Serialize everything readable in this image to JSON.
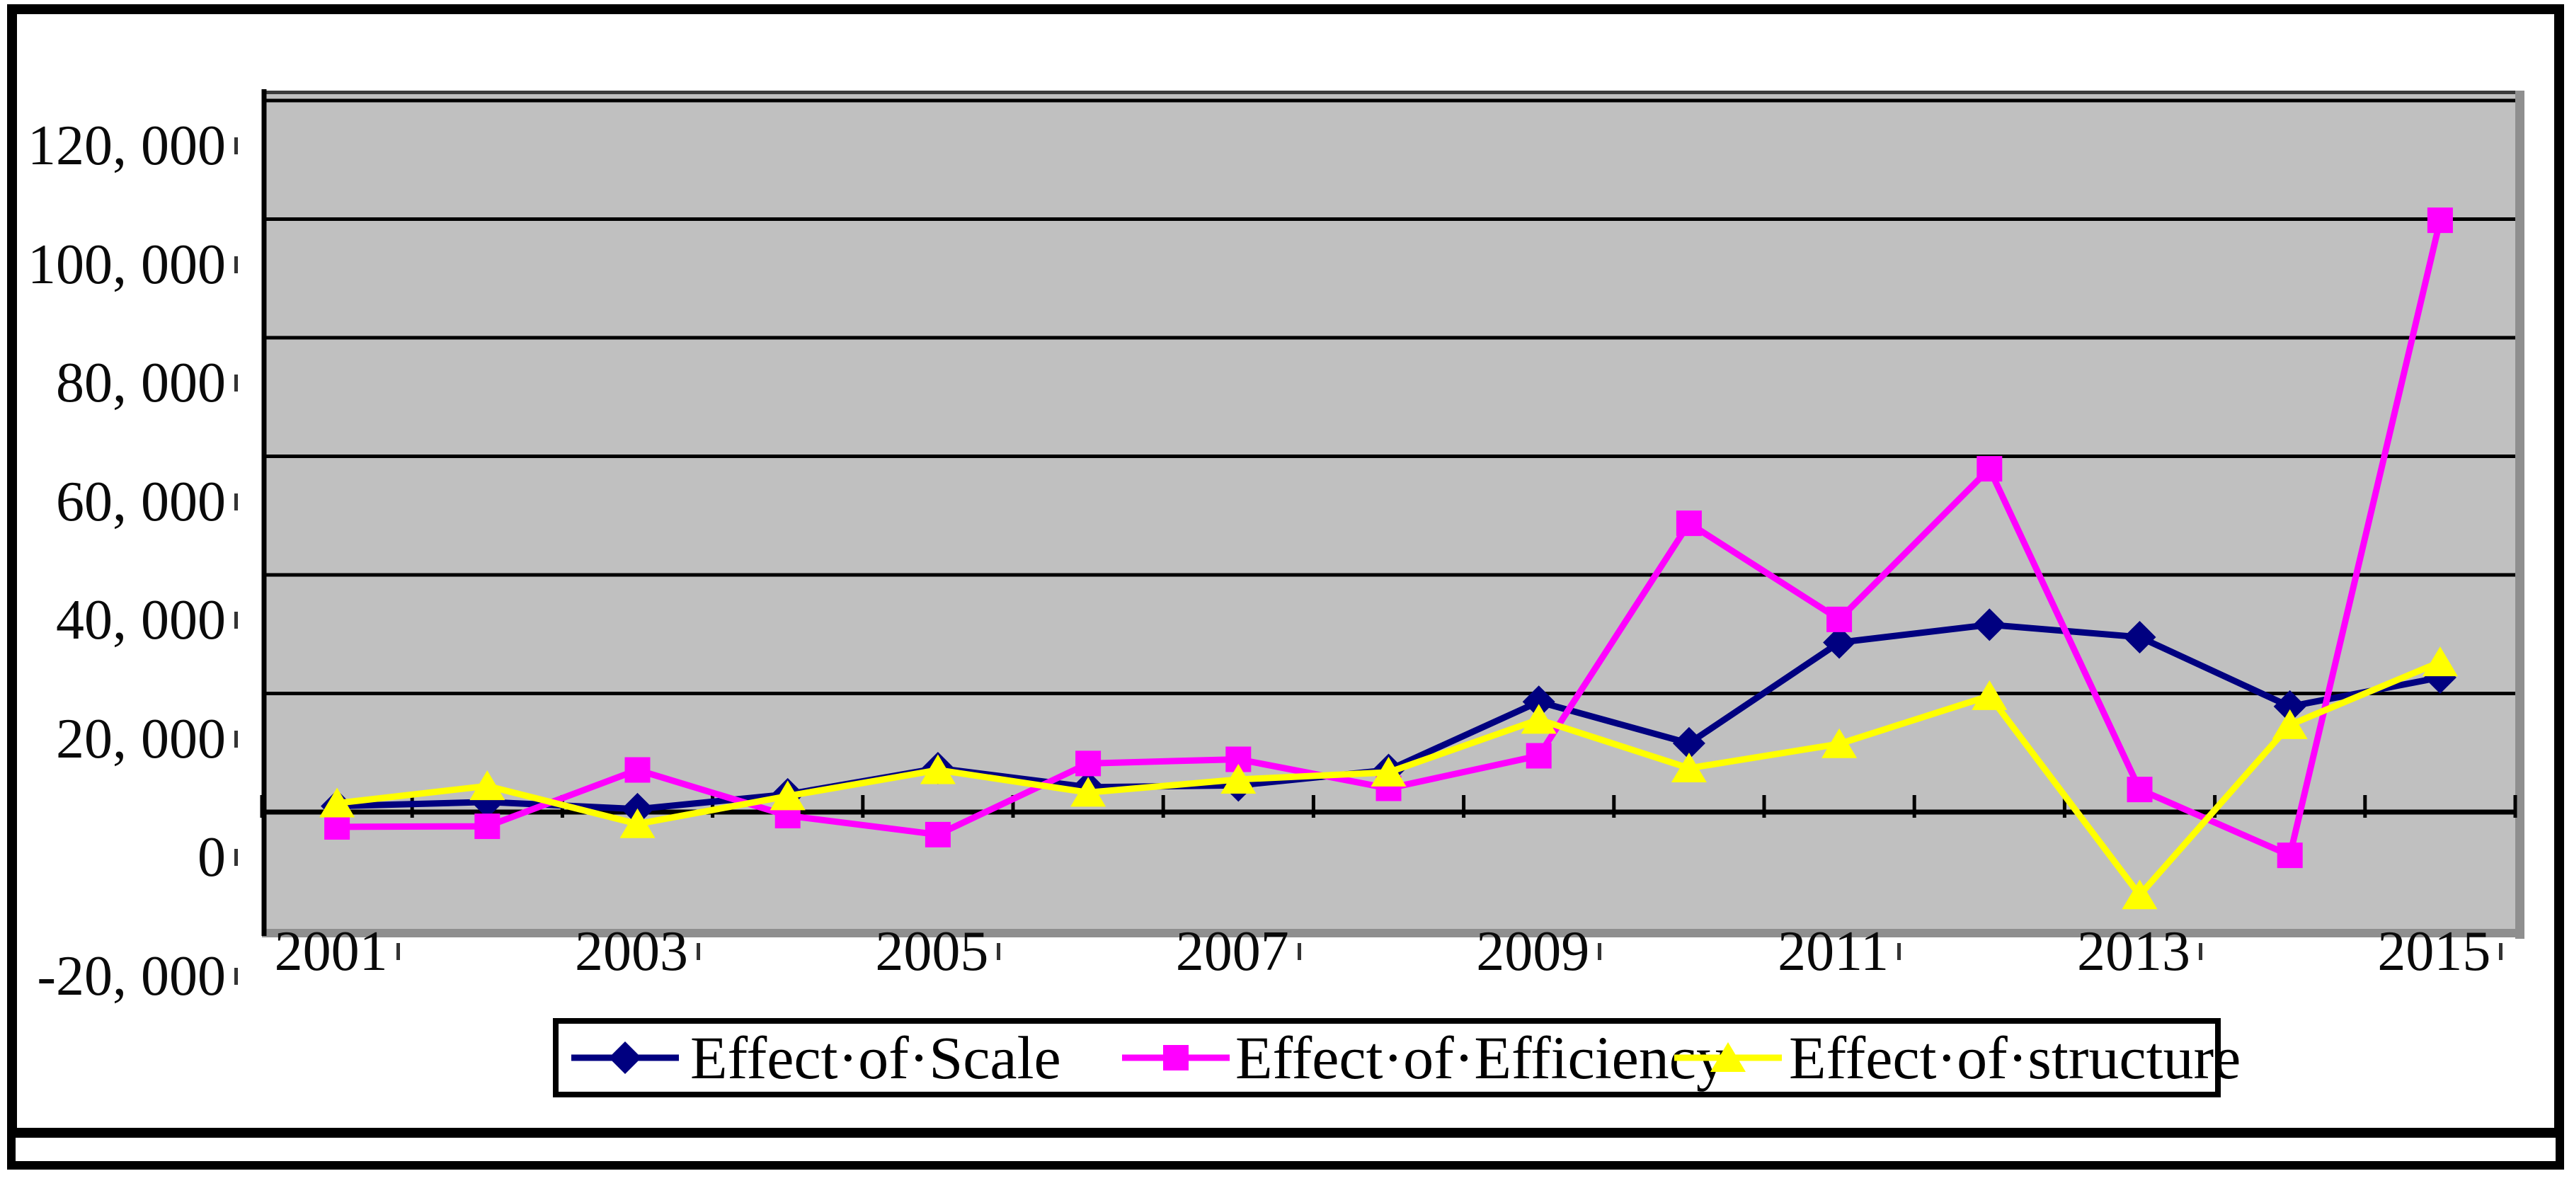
{
  "chart_data": {
    "type": "line",
    "title": "",
    "categories": [
      2001,
      2002,
      2003,
      2004,
      2005,
      2006,
      2007,
      2008,
      2009,
      2010,
      2011,
      2012,
      2013,
      2014,
      2015
    ],
    "x_tick_labels": [
      "2001",
      "2003",
      "2005",
      "2007",
      "2009",
      "2011",
      "2013",
      "2015"
    ],
    "y_tick_labels": [
      "120, 000",
      "100, 000",
      "80, 000",
      "60, 000",
      "40, 000",
      "20, 000",
      "0",
      "-20, 000"
    ],
    "y_tick_values": [
      120000,
      100000,
      80000,
      60000,
      40000,
      20000,
      0,
      -20000
    ],
    "ylim": [
      -20000,
      122000
    ],
    "xlabel": "",
    "ylabel": "",
    "grid": "horizontal-major",
    "legend_position": "bottom",
    "plot_background": "#c0c0c0",
    "gridline_color": "#000000",
    "axis_color": "#000000",
    "series": [
      {
        "name": "Effect·of·Scale",
        "color": "#000080",
        "marker": "diamond",
        "values": [
          1000,
          1700,
          500,
          3000,
          7400,
          4200,
          4500,
          7100,
          18600,
          11600,
          28600,
          31600,
          29500,
          17800,
          22700
        ]
      },
      {
        "name": "Effect·of·Efficiency",
        "color": "#ff00ff",
        "marker": "square",
        "values": [
          -2500,
          -2400,
          7100,
          -600,
          -3800,
          8200,
          8900,
          4000,
          9500,
          48700,
          32500,
          57900,
          3800,
          -7300,
          99800
        ]
      },
      {
        "name": "Effect·of·structure",
        "color": "#ffff00",
        "marker": "triangle",
        "values": [
          1500,
          4400,
          -2000,
          2700,
          7100,
          3300,
          5500,
          6700,
          15600,
          7400,
          11500,
          19600,
          -14000,
          14700,
          25300
        ]
      }
    ]
  }
}
